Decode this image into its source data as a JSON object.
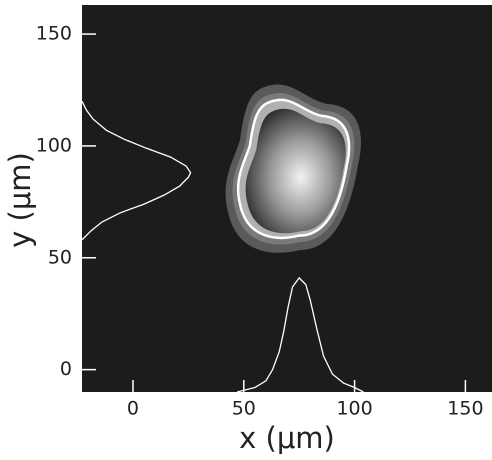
{
  "chart_data": {
    "type": "image",
    "xlabel": "x  (μm)",
    "ylabel": "y  (μm)",
    "xlim": [
      -23,
      162
    ],
    "ylim": [
      -10,
      163
    ],
    "xticks": [
      0,
      50,
      100,
      150
    ],
    "yticks": [
      0,
      50,
      100,
      150
    ],
    "x_profile": {
      "color": "#ffffff",
      "x": [
        47,
        55,
        60,
        63,
        66,
        68,
        70,
        72,
        75,
        78,
        80,
        83,
        86,
        90,
        95,
        100,
        104
      ],
      "values": [
        -10,
        -8,
        -5,
        0,
        8,
        17,
        28,
        37,
        41,
        38,
        31,
        18,
        6,
        -2,
        -6,
        -8,
        -10
      ]
    },
    "y_profile": {
      "color": "#ffffff",
      "y": [
        58,
        62,
        66,
        70,
        74,
        78,
        82,
        86,
        88,
        91,
        95,
        99,
        103,
        107,
        112,
        116,
        120
      ],
      "values": [
        -23,
        -19,
        -14,
        -6,
        5,
        14,
        21,
        25,
        26,
        24,
        17,
        6,
        -4,
        -12,
        -18,
        -21,
        -23
      ]
    }
  }
}
